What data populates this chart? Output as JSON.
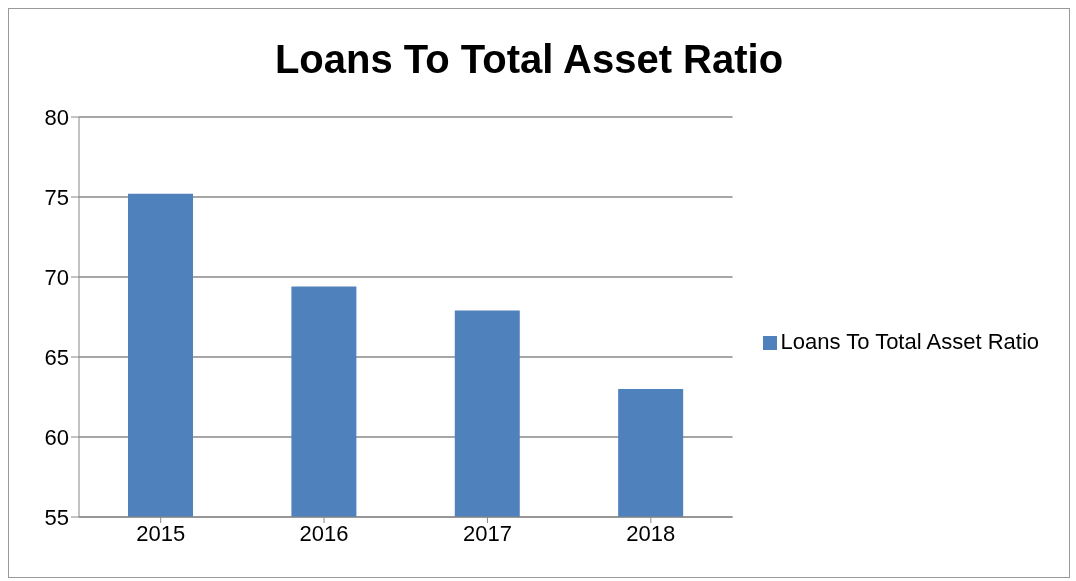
{
  "chart_data": {
    "type": "bar",
    "title": "Loans To Total Asset Ratio",
    "categories": [
      "2015",
      "2016",
      "2017",
      "2018"
    ],
    "series": [
      {
        "name": "Loans To Total Asset Ratio",
        "color": "#4f81bd",
        "values": [
          75.2,
          69.4,
          67.9,
          63.0
        ]
      }
    ],
    "ylim": [
      55,
      80
    ],
    "yticks": [
      55,
      60,
      65,
      70,
      75,
      80
    ],
    "grid": "y",
    "legend": "right"
  }
}
